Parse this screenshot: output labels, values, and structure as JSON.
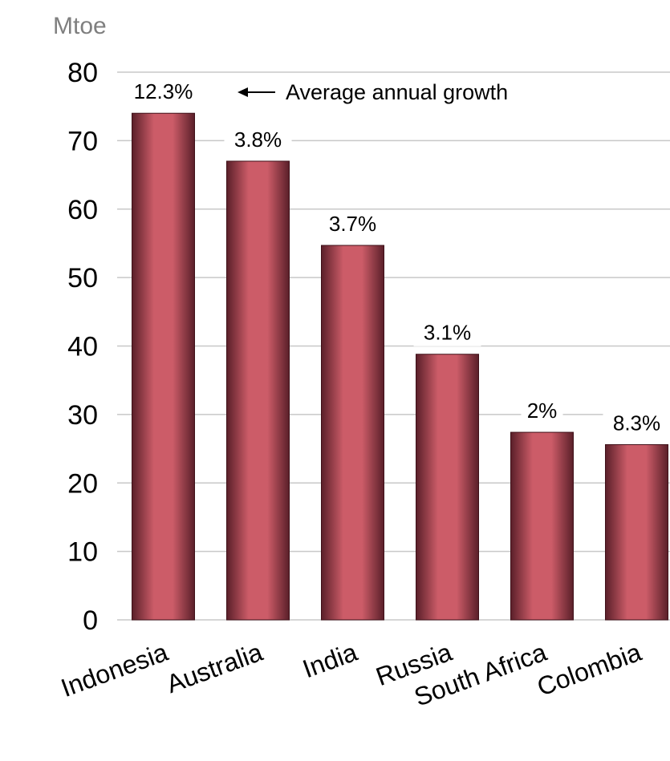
{
  "chart_data": {
    "type": "bar",
    "categories": [
      "Indonesia",
      "Australia",
      "India",
      "Russia",
      "South Africa",
      "Colombia"
    ],
    "values": [
      74,
      67,
      54.7,
      38.8,
      27.4,
      25.6
    ],
    "data_labels": [
      "12.3%",
      "3.8%",
      "3.7%",
      "3.1%",
      "2%",
      "8.3%"
    ],
    "ylabel": "Mtoe",
    "ylim": [
      0,
      80
    ],
    "yticks": [
      0,
      10,
      20,
      30,
      40,
      50,
      60,
      70,
      80
    ],
    "ytick_labels": [
      "0",
      "10",
      "20",
      "30",
      "40",
      "50",
      "60",
      "70",
      "80"
    ],
    "grid": true,
    "annotation": "Average annual growth",
    "colors": {
      "bar_center": "#cc5c68",
      "bar_edge": "#5a1f29",
      "grid": "#c8c8c8"
    }
  }
}
